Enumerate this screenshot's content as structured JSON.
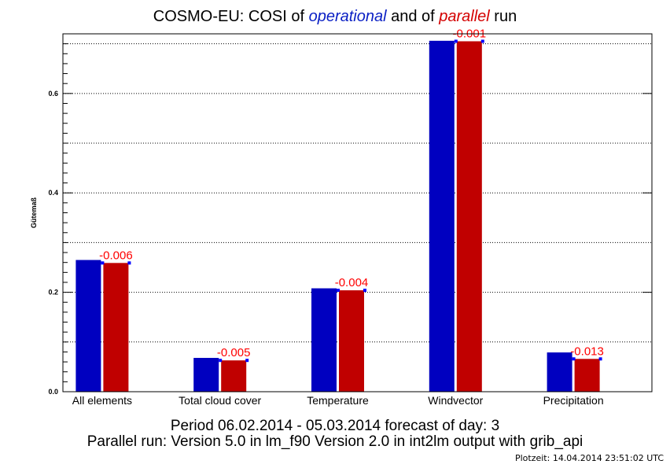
{
  "header": {
    "title_prefix": "COSMO-EU: COSI  of ",
    "title_operational": "operational",
    "title_middle": " and of ",
    "title_parallel": "parallel",
    "title_suffix": " run"
  },
  "footer": {
    "line1": "Period 06.02.2014 - 05.03.2014 forecast of day: 3",
    "line2": "Parallel run: Version 5.0 in lm_f90 Version 2.0 in int2lm output with grib_api",
    "plotzeit": "Plotzeit:  14.04.2014  23:51:02  UTC"
  },
  "colors": {
    "operational": "#0000c0",
    "parallel": "#c00000",
    "diff_label": "#ff0000",
    "marker": "#0000ff"
  },
  "chart_data": {
    "type": "bar",
    "ylabel": "Gütemaß",
    "ylim": [
      0,
      0.72
    ],
    "yticks": [
      0.0,
      0.2,
      0.4,
      0.6
    ],
    "ytick_labels": [
      "0.0",
      "0.2",
      "0.4",
      "0.6"
    ],
    "grid": "horizontal dotted",
    "categories": [
      "All elements",
      "Total cloud cover",
      "Temperature",
      "Windvector",
      "Precipitation"
    ],
    "series": [
      {
        "values": [
          0.265,
          0.068,
          0.208,
          0.706,
          0.079
        ]
      },
      {
        "values": [
          0.259,
          0.063,
          0.204,
          0.705,
          0.066
        ]
      }
    ],
    "differences": [
      "-0.006",
      "-0.005",
      "-0.004",
      "-0.001",
      "-0.013"
    ]
  }
}
